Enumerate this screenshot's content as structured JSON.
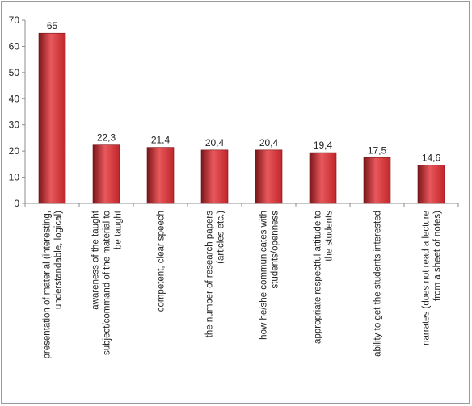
{
  "chart_data": {
    "type": "bar",
    "categories": [
      [
        "presentation of material (interesting,",
        "understandable, logical)"
      ],
      [
        "awareness of the taught",
        "subject/command of the material to",
        "be taught"
      ],
      [
        "competent, clear speech"
      ],
      [
        "the number of research papers",
        "(articles etc.)"
      ],
      [
        "how he/she communicates with",
        "students/openness"
      ],
      [
        "appropriate respectful attitude to",
        "the students"
      ],
      [
        "ability to get the students interested"
      ],
      [
        "narrates (does not read a lecture",
        "from a sheet of notes)"
      ]
    ],
    "values": [
      65,
      22.3,
      21.4,
      20.4,
      20.4,
      19.4,
      17.5,
      14.6
    ],
    "data_labels": [
      "65",
      "22,3",
      "21,4",
      "20,4",
      "20,4",
      "19,4",
      "17,5",
      "14,6"
    ],
    "yticks": [
      "0",
      "10",
      "20",
      "30",
      "40",
      "50",
      "60",
      "70"
    ],
    "ylim": [
      0,
      70
    ],
    "title": "",
    "xlabel": "",
    "ylabel": "",
    "grid": false,
    "legend": "none",
    "colors": {
      "bar": "#c0262a",
      "bar_light": "#e8585c",
      "bar_dark": "#7a1518",
      "axis": "#8c8c8c"
    }
  }
}
